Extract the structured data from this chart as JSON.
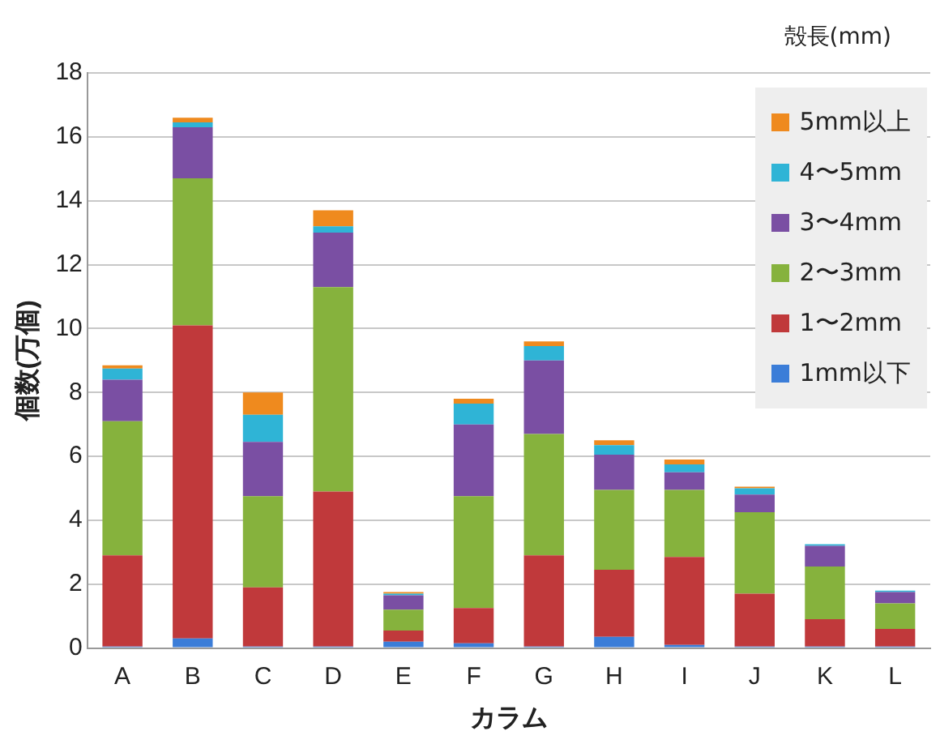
{
  "chart_data": {
    "type": "bar",
    "stacked": true,
    "xlabel": "カラム",
    "ylabel": "個数(万個)",
    "legend_title": "殻長(mm)",
    "legend": "top right",
    "grid": "y",
    "categories": [
      "A",
      "B",
      "C",
      "D",
      "E",
      "F",
      "G",
      "H",
      "I",
      "J",
      "K",
      "L"
    ],
    "ylim": [
      0,
      18
    ],
    "yticks": [
      0,
      2,
      4,
      6,
      8,
      10,
      12,
      14,
      16,
      18
    ],
    "series": [
      {
        "name": "1mm以下",
        "color": "#3b7dd8",
        "values": [
          0.05,
          0.3,
          0.05,
          0.05,
          0.2,
          0.15,
          0.05,
          0.35,
          0.1,
          0.05,
          0.05,
          0.05
        ]
      },
      {
        "name": "1〜2mm",
        "color": "#c0393b",
        "values": [
          2.85,
          9.8,
          1.85,
          4.85,
          0.35,
          1.1,
          2.85,
          2.1,
          2.75,
          1.65,
          0.85,
          0.55
        ]
      },
      {
        "name": "2〜3mm",
        "color": "#86b23d",
        "values": [
          4.2,
          4.6,
          2.85,
          6.4,
          0.65,
          3.5,
          3.8,
          2.5,
          2.1,
          2.55,
          1.65,
          0.8
        ]
      },
      {
        "name": "3〜4mm",
        "color": "#7a4fa3",
        "values": [
          1.3,
          1.6,
          1.7,
          1.7,
          0.45,
          2.25,
          2.3,
          1.1,
          0.55,
          0.55,
          0.65,
          0.35
        ]
      },
      {
        "name": "4〜5mm",
        "color": "#2fb4d6",
        "values": [
          0.35,
          0.15,
          0.85,
          0.2,
          0.05,
          0.65,
          0.45,
          0.3,
          0.25,
          0.2,
          0.05,
          0.05
        ]
      },
      {
        "name": "5mm以上",
        "color": "#ef8a1e",
        "values": [
          0.1,
          0.15,
          0.7,
          0.5,
          0.05,
          0.15,
          0.15,
          0.15,
          0.15,
          0.05,
          null,
          null
        ]
      }
    ]
  }
}
